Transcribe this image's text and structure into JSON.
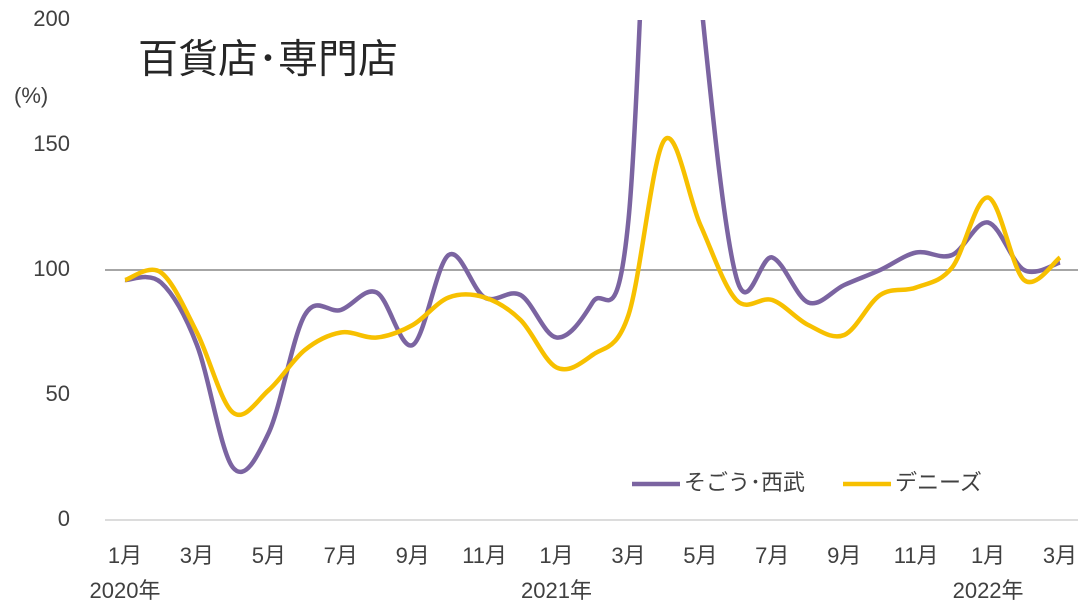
{
  "chart_data": {
    "type": "line",
    "title": "百貨店･専門店",
    "y_label": "(%)",
    "categories": [
      "1月",
      null,
      "3月",
      null,
      "5月",
      null,
      "7月",
      null,
      "9月",
      null,
      "11月",
      null,
      "1月",
      null,
      "3月",
      null,
      "5月",
      null,
      "7月",
      null,
      "9月",
      null,
      "11月",
      null,
      "1月",
      null,
      "3月"
    ],
    "year_labels": [
      "2020年",
      "2021年",
      "2022年"
    ],
    "series": [
      {
        "name": "そごう･西武",
        "color": "#7b64a1",
        "values": [
          96,
          95,
          70,
          21,
          35,
          82,
          84,
          91,
          70,
          106,
          89,
          90,
          73,
          87,
          120,
          380,
          210,
          97,
          105,
          87,
          94,
          100,
          107,
          106,
          119,
          100,
          103
        ]
      },
      {
        "name": "デニーズ",
        "color": "#f7c000",
        "values": [
          96,
          99,
          75,
          43,
          52,
          68,
          75,
          73,
          78,
          89,
          89,
          80,
          61,
          66,
          82,
          152,
          118,
          88,
          88,
          78,
          74,
          90,
          93,
          101,
          129,
          96,
          105
        ]
      }
    ],
    "ylim": [
      0,
      200
    ],
    "yticks": [
      0,
      50,
      100,
      150,
      200
    ],
    "reference_line": 100,
    "legend": "lower right"
  }
}
